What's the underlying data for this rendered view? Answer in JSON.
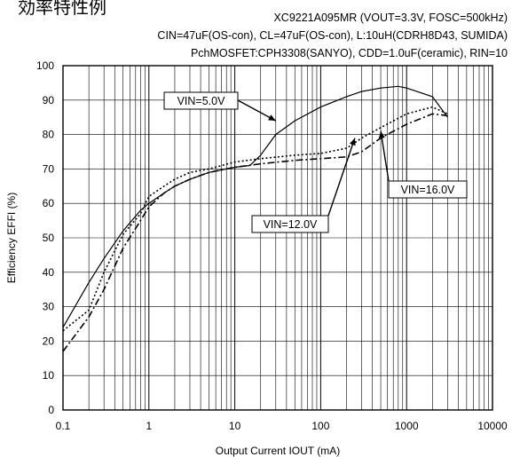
{
  "header": {
    "title": "効率特性例",
    "conditions": [
      "XC9221A095MR (VOUT=3.3V, FOSC=500kHz)",
      "CIN=47uF(OS-con), CL=47uF(OS-con), L:10uH(CDRH8D43, SUMIDA)",
      "PchMOSFET:CPH3308(SANYO), CDD=1.0uF(ceramic), RIN=10"
    ]
  },
  "chart_data": {
    "type": "line",
    "xlabel": "Output Current IOUT (mA)",
    "ylabel": "Efficiency EFFI (%)",
    "xscale": "log",
    "xlim": [
      0.1,
      10000
    ],
    "ylim": [
      0,
      100
    ],
    "xticks": [
      "0.1",
      "1",
      "10",
      "100",
      "1000",
      "10000"
    ],
    "yticks": [
      "0",
      "10",
      "20",
      "30",
      "40",
      "50",
      "60",
      "70",
      "80",
      "90",
      "100"
    ],
    "grid": true,
    "series": [
      {
        "name": "VIN=5.0V",
        "style": "solid",
        "x": [
          0.1,
          0.2,
          0.3,
          0.5,
          0.8,
          1,
          1.5,
          2,
          3,
          5,
          8,
          10,
          15,
          20,
          30,
          50,
          100,
          200,
          300,
          500,
          800,
          1000,
          2000,
          3000
        ],
        "y": [
          24,
          37,
          44,
          52,
          58,
          60,
          63,
          65,
          67,
          69,
          70,
          70.5,
          71,
          74,
          80,
          84,
          88,
          91,
          92.5,
          93.5,
          94,
          93.5,
          91,
          85
        ]
      },
      {
        "name": "VIN=12.0V",
        "style": "dotted",
        "x": [
          0.1,
          0.2,
          0.3,
          0.5,
          0.8,
          1,
          1.5,
          2,
          3,
          5,
          10,
          20,
          50,
          100,
          200,
          300,
          500,
          1000,
          2000,
          3000
        ],
        "y": [
          23,
          29,
          40,
          51,
          57,
          62,
          65,
          67,
          69,
          70,
          72,
          73,
          74,
          74.5,
          76,
          79,
          82,
          86,
          88,
          86
        ]
      },
      {
        "name": "VIN=16.0V",
        "style": "dash-dot",
        "x": [
          0.1,
          0.2,
          0.3,
          0.5,
          0.8,
          1,
          1.5,
          2,
          3,
          5,
          10,
          20,
          50,
          100,
          200,
          300,
          500,
          1000,
          2000,
          3000
        ],
        "y": [
          17,
          27,
          35,
          47,
          55,
          59,
          63,
          65,
          67,
          69,
          70.5,
          71.5,
          72.5,
          73,
          73.5,
          75,
          79,
          83,
          86,
          85.5
        ]
      }
    ],
    "callouts": [
      {
        "label": "VIN=5.0V",
        "series": 0,
        "point_x": 30,
        "point_y": 84
      },
      {
        "label": "VIN=12.0V",
        "series": 1,
        "point_x": 250,
        "point_y": 79
      },
      {
        "label": "VIN=16.0V",
        "series": 2,
        "point_x": 500,
        "point_y": 81
      }
    ]
  }
}
